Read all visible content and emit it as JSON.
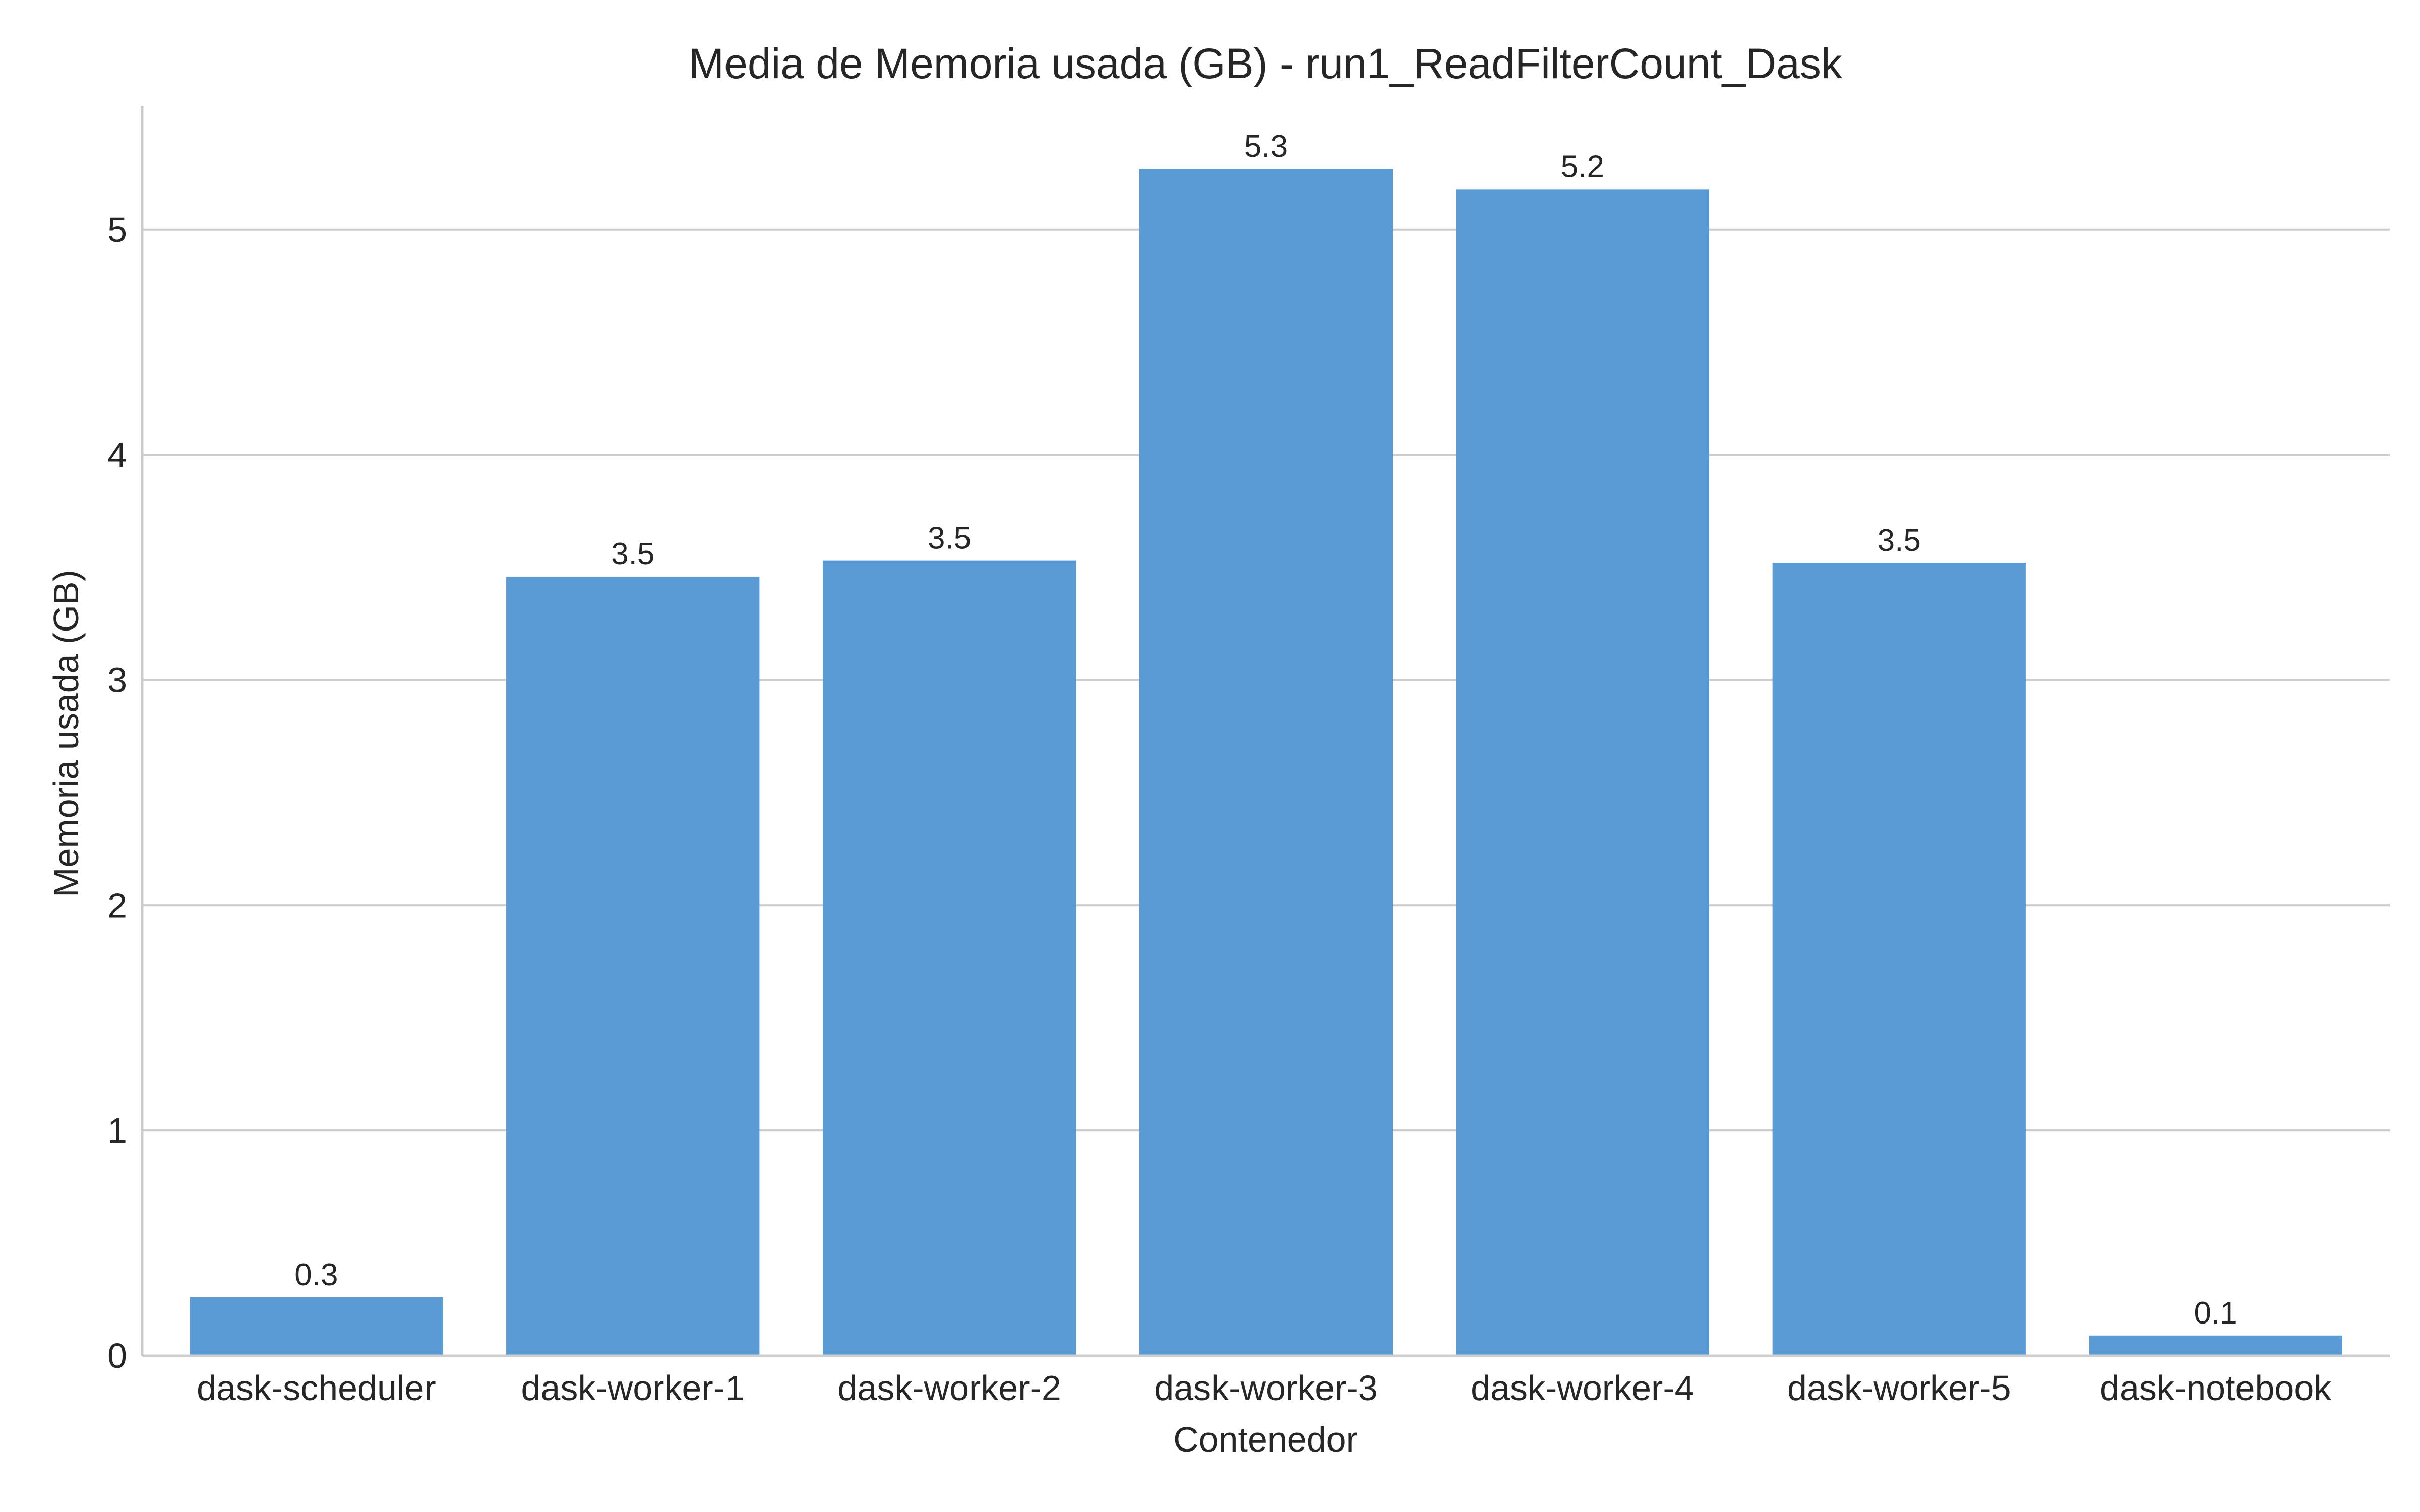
{
  "chart_data": {
    "type": "bar",
    "title": "Media de Memoria usada (GB) - run1_ReadFilterCount_Dask",
    "xlabel": "Contenedor",
    "ylabel": "Memoria usada (GB)",
    "categories": [
      "dask-scheduler",
      "dask-worker-1",
      "dask-worker-2",
      "dask-worker-3",
      "dask-worker-4",
      "dask-worker-5",
      "dask-notebook"
    ],
    "values": [
      0.26,
      3.46,
      3.53,
      5.27,
      5.18,
      3.52,
      0.09
    ],
    "data_labels": [
      "0.3",
      "3.5",
      "3.5",
      "5.3",
      "5.2",
      "3.5",
      "0.1"
    ],
    "yticks": [
      0,
      1,
      2,
      3,
      4,
      5
    ],
    "ylim": [
      0,
      5.55
    ],
    "grid": "y",
    "bar_color": "#5b9bd5"
  }
}
